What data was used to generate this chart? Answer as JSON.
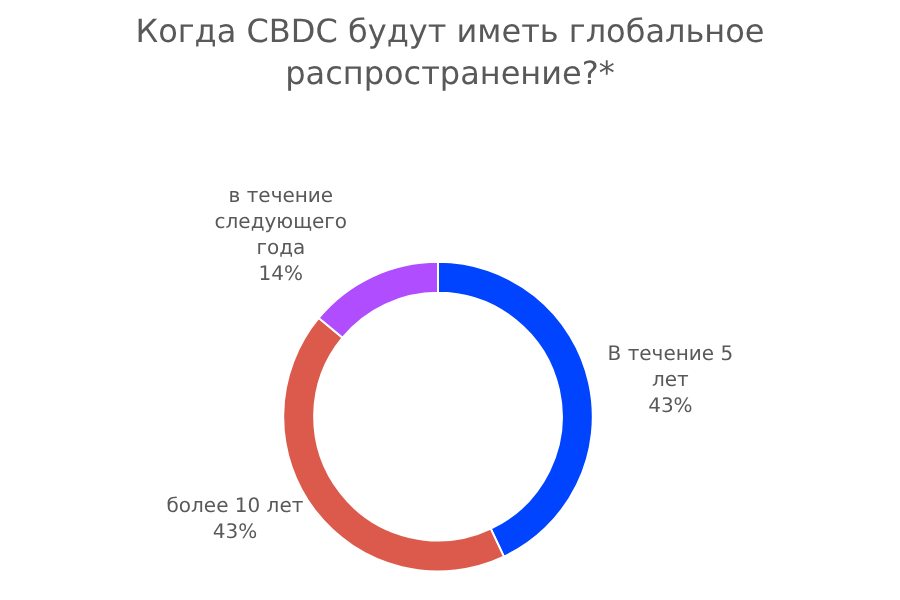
{
  "chart_data": {
    "type": "donut",
    "title": "Когда CBDC будут иметь глобальное распространение?*",
    "categories": [
      "В течение 5 лет",
      "более 10 лет",
      "в течение следующего года"
    ],
    "values": [
      43,
      43,
      14
    ],
    "colors": [
      "#0044ff",
      "#dc5a4b",
      "#b04dff"
    ],
    "value_labels": [
      "43%",
      "43%",
      "14%"
    ],
    "legend": false
  }
}
